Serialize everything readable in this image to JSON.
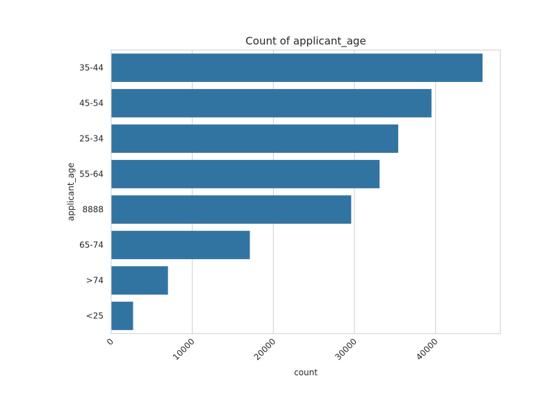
{
  "chart_data": {
    "type": "bar",
    "orientation": "horizontal",
    "title": "Count of applicant_age",
    "xlabel": "count",
    "ylabel": "applicant_age",
    "categories": [
      "35-44",
      "45-54",
      "25-34",
      "55-64",
      "8888",
      "65-74",
      ">74",
      "<25"
    ],
    "values": [
      45800,
      39500,
      35400,
      33100,
      29600,
      17100,
      7000,
      2700
    ],
    "xlim": [
      0,
      48000
    ],
    "xticks": [
      0,
      10000,
      20000,
      30000,
      40000
    ],
    "xtick_labels": [
      "0",
      "10000",
      "20000",
      "30000",
      "40000"
    ],
    "xtick_rotation": 45,
    "grid": true,
    "bar_color": "#3274a1",
    "grid_color": "#cccccc"
  }
}
